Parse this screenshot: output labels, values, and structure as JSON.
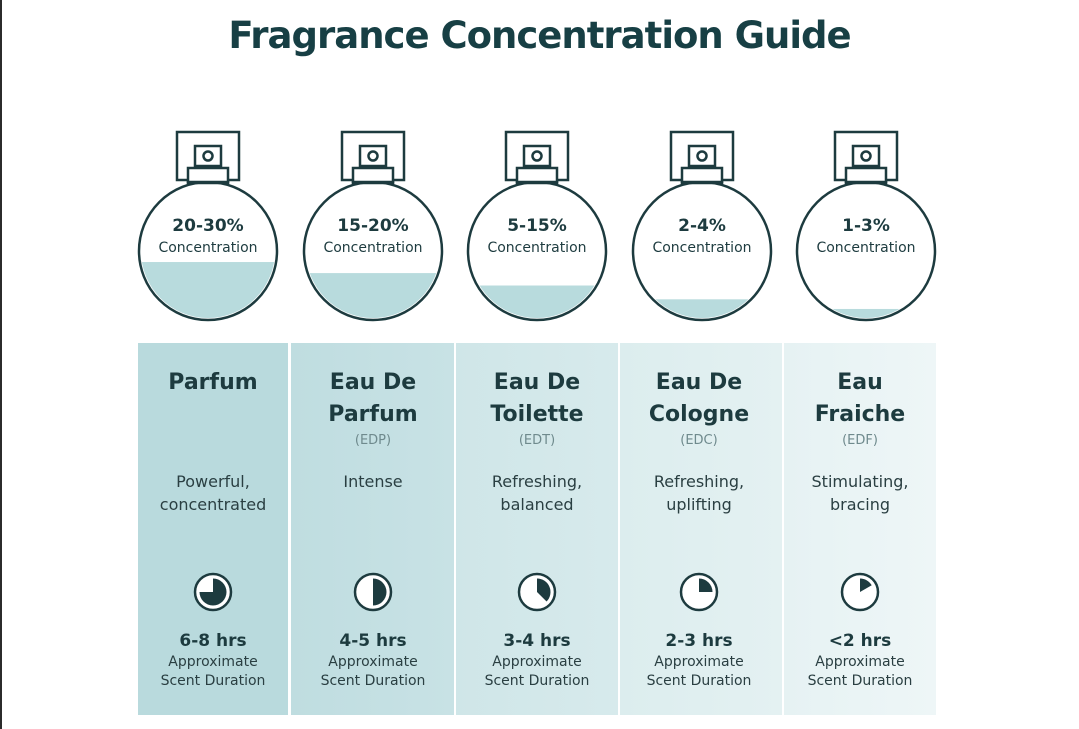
{
  "title": "Fragrance Concentration Guide",
  "colors": {
    "ink": "#1d3b3f",
    "liquid": "#b8dbdd",
    "column_start": "#b9dadd",
    "column_end": "#edf5f6"
  },
  "types": [
    {
      "concentration": "20-30%",
      "concentration_label": "Concentration",
      "fill_fraction": 0.42,
      "name": "Parfum",
      "abbr": "",
      "description": "Powerful,\nconcentrated",
      "duration": "6-8 hrs",
      "duration_label": "Approximate\nScent Duration",
      "clock_fraction": 0.75,
      "icon": "clock-icon"
    },
    {
      "concentration": "15-20%",
      "concentration_label": "Concentration",
      "fill_fraction": 0.34,
      "name": "Eau De\nParfum",
      "abbr": "(EDP)",
      "description": "Intense",
      "duration": "4-5 hrs",
      "duration_label": "Approximate\nScent Duration",
      "clock_fraction": 0.5,
      "icon": "clock-icon"
    },
    {
      "concentration": "5-15%",
      "concentration_label": "Concentration",
      "fill_fraction": 0.25,
      "name": "Eau De\nToilette",
      "abbr": "(EDT)",
      "description": "Refreshing,\nbalanced",
      "duration": "3-4 hrs",
      "duration_label": "Approximate\nScent Duration",
      "clock_fraction": 0.375,
      "icon": "clock-icon"
    },
    {
      "concentration": "2-4%",
      "concentration_label": "Concentration",
      "fill_fraction": 0.15,
      "name": "Eau De\nCologne",
      "abbr": "(EDC)",
      "description": "Refreshing,\nuplifting",
      "duration": "2-3 hrs",
      "duration_label": "Approximate\nScent Duration",
      "clock_fraction": 0.25,
      "icon": "clock-icon"
    },
    {
      "concentration": "1-3%",
      "concentration_label": "Concentration",
      "fill_fraction": 0.08,
      "name": "Eau\nFraiche",
      "abbr": "(EDF)",
      "description": "Stimulating,\nbracing",
      "duration": "<2 hrs",
      "duration_label": "Approximate\nScent Duration",
      "clock_fraction": 0.167,
      "icon": "clock-icon"
    }
  ]
}
